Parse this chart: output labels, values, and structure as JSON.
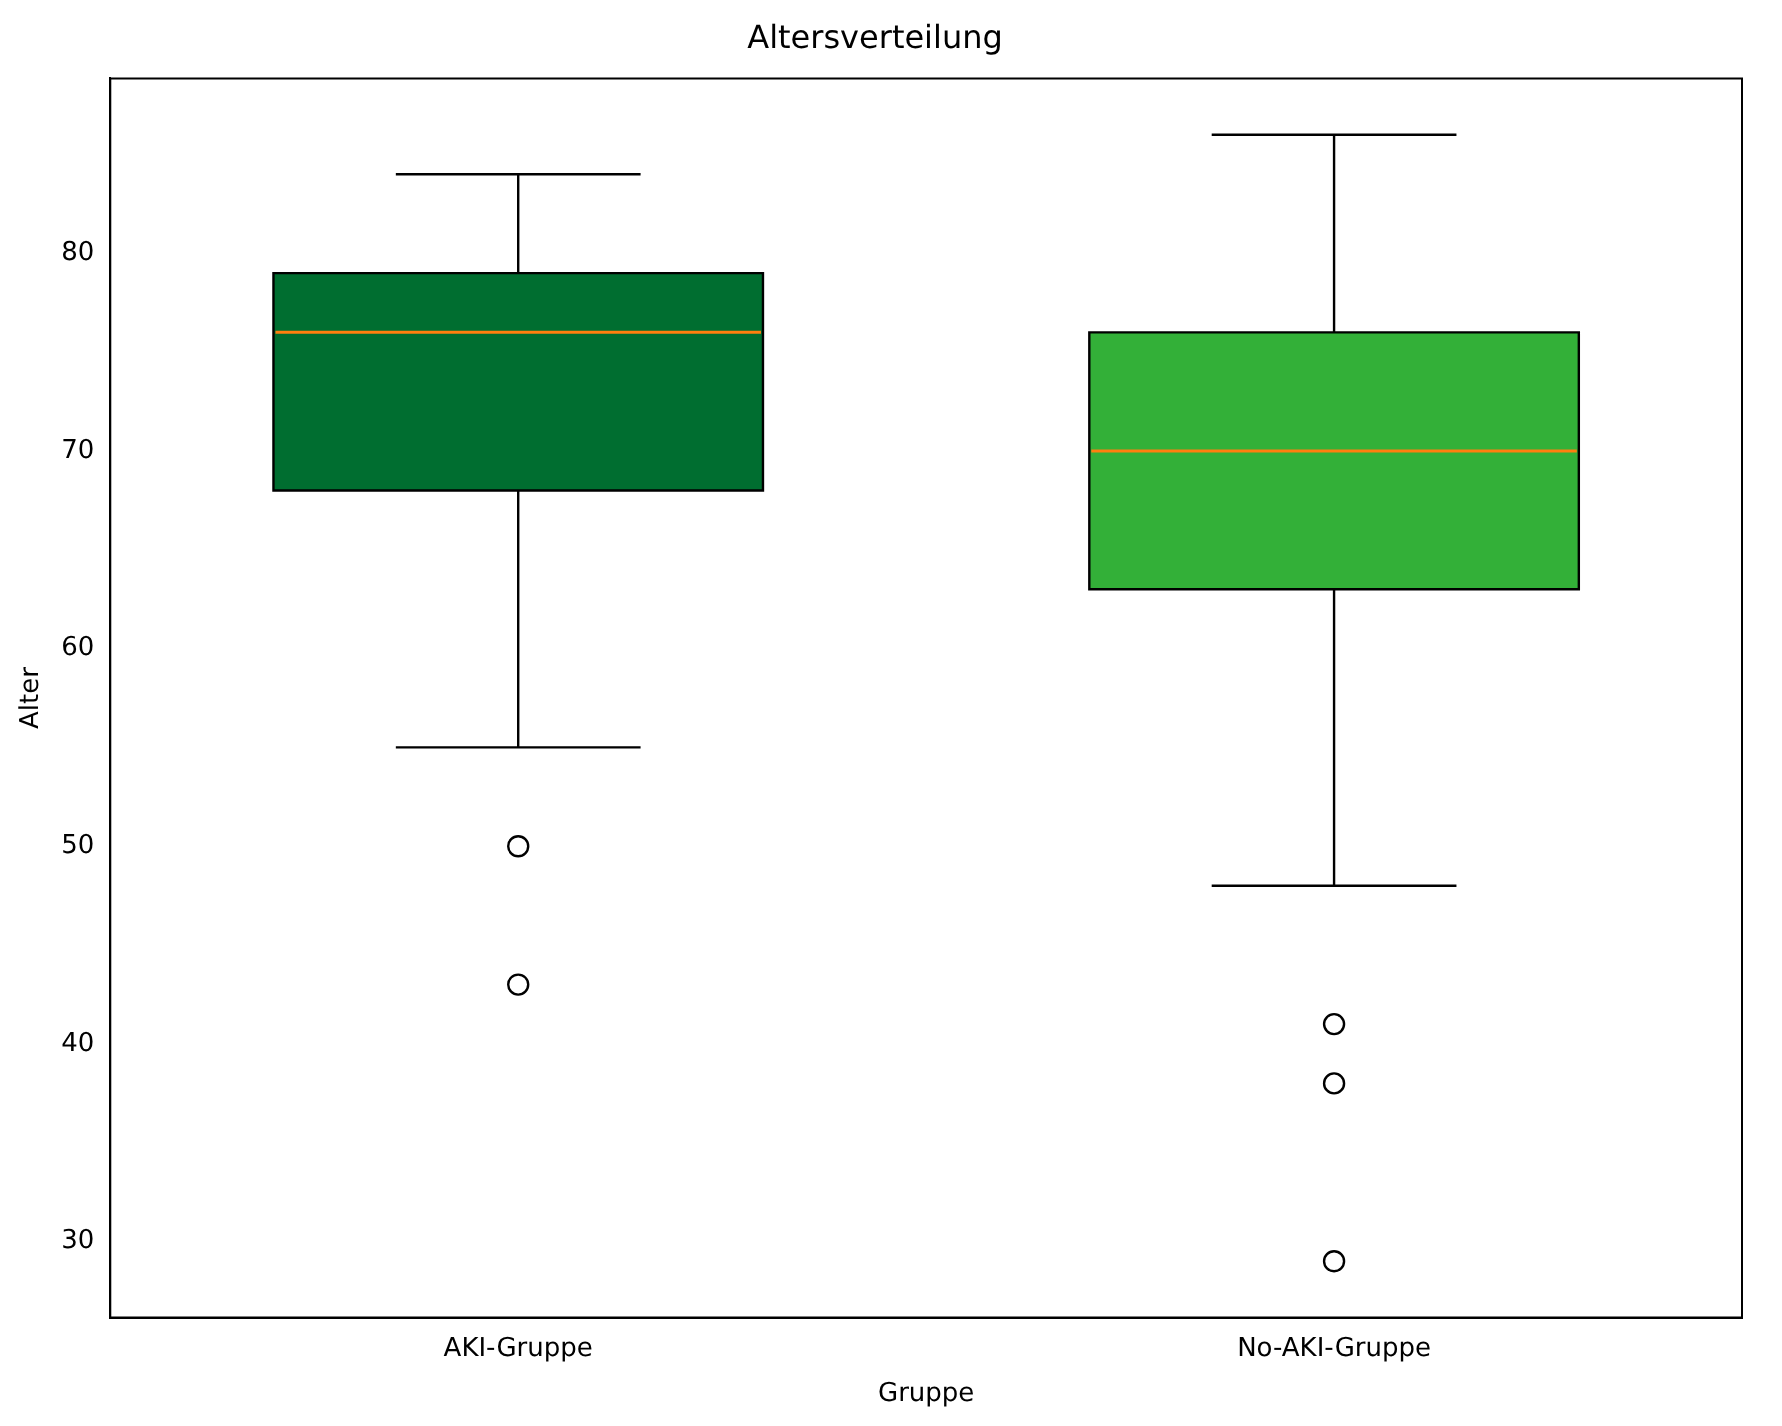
{
  "chart_data": {
    "type": "box",
    "title": "Altersverteilung",
    "xlabel": "Gruppe",
    "ylabel": "Alter",
    "categories": [
      "AKI-Gruppe",
      "No-AKI-Gruppe"
    ],
    "colors": [
      "#006e30",
      "#33b038"
    ],
    "boxes": [
      {
        "low": 55,
        "q1": 68,
        "median": 76,
        "q3": 79,
        "high": 84,
        "outliers": [
          50,
          43
        ]
      },
      {
        "low": 48,
        "q1": 63,
        "median": 70,
        "q3": 76,
        "high": 86,
        "outliers": [
          41,
          38,
          29
        ]
      }
    ],
    "ylim": [
      26.15,
      88.85
    ],
    "yticks": [
      30,
      40,
      50,
      60,
      70,
      80
    ],
    "grid": false,
    "legend": false
  }
}
